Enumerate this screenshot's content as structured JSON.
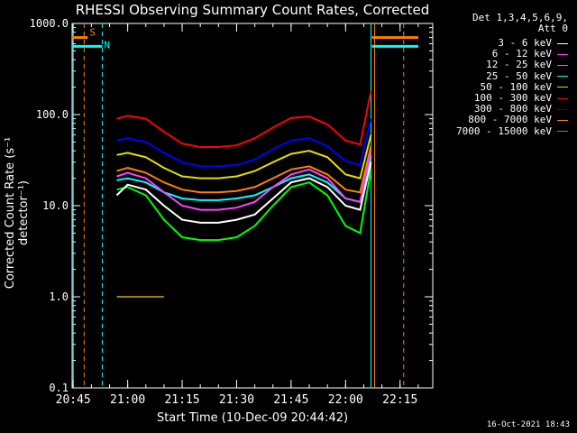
{
  "chart_data": {
    "type": "line",
    "title": "RHESSI Observing Summary Count Rates, Corrected",
    "xlabel": "Start Time (10-Dec-09 20:44:42)",
    "ylabel": "Corrected Count Rate (s⁻¹ detector⁻¹)",
    "yscale": "log",
    "ylim": [
      0.1,
      1000
    ],
    "xlim": [
      "20:44:42",
      "22:24:00"
    ],
    "x_ticks": [
      "20:45",
      "21:00",
      "21:15",
      "21:30",
      "21:45",
      "22:00",
      "22:15"
    ],
    "y_ticks": [
      "0.1",
      "1.0",
      "10.0",
      "100.0",
      "1000.0"
    ],
    "grid": false,
    "legend_position": "top-right",
    "detector_info": [
      "Det 1,3,4,5,6,9,",
      "Att 0"
    ],
    "data_gap": [
      "21:00",
      "22:07"
    ],
    "series": [
      {
        "name": "3 - 6 keV",
        "color": "#ffffff",
        "x": [
          "20:57",
          "21:00",
          "21:05",
          "21:10",
          "21:15",
          "21:20",
          "21:25",
          "21:30",
          "21:35",
          "21:40",
          "21:45",
          "21:50",
          "21:55",
          "22:00",
          "22:04",
          "22:07"
        ],
        "values": [
          13,
          17,
          15,
          10,
          7,
          6.5,
          6.5,
          7,
          8,
          12,
          18,
          20,
          16,
          10,
          9,
          30
        ]
      },
      {
        "name": "6 - 12 keV",
        "color": "#ff40ff",
        "x": [
          "20:57",
          "21:00",
          "21:05",
          "21:10",
          "21:15",
          "21:20",
          "21:25",
          "21:30",
          "21:35",
          "21:40",
          "21:45",
          "21:50",
          "21:55",
          "22:00",
          "22:04",
          "22:07"
        ],
        "values": [
          21,
          23,
          20,
          14,
          10,
          9,
          9,
          9.5,
          11,
          16,
          22,
          25,
          20,
          12,
          11,
          40
        ]
      },
      {
        "name": "12 - 25 keV",
        "color": "#00ff00",
        "x": [
          "20:57",
          "21:00",
          "21:05",
          "21:10",
          "21:15",
          "21:20",
          "21:25",
          "21:30",
          "21:35",
          "21:40",
          "21:45",
          "21:50",
          "21:55",
          "22:00",
          "22:04",
          "22:07"
        ],
        "values": [
          15,
          16,
          13,
          7,
          4.5,
          4.2,
          4.2,
          4.5,
          6,
          10,
          16,
          18,
          13,
          6,
          5,
          25
        ]
      },
      {
        "name": "25 - 50 keV",
        "color": "#00ffff",
        "x": [
          "20:57",
          "21:00",
          "21:05",
          "21:10",
          "21:15",
          "21:20",
          "21:25",
          "21:30",
          "21:35",
          "21:40",
          "21:45",
          "21:50",
          "21:55",
          "22:00",
          "22:04",
          "22:07"
        ],
        "values": [
          19,
          20,
          18,
          14,
          12,
          11.5,
          11.5,
          12,
          13,
          16,
          20,
          22,
          18,
          12,
          11,
          35
        ]
      },
      {
        "name": "50 - 100 keV",
        "color": "#e0e000",
        "x": [
          "20:57",
          "21:00",
          "21:05",
          "21:10",
          "21:15",
          "21:20",
          "21:25",
          "21:30",
          "21:35",
          "21:40",
          "21:45",
          "21:50",
          "21:55",
          "22:00",
          "22:04",
          "22:07"
        ],
        "values": [
          36,
          38,
          34,
          26,
          21,
          20,
          20,
          21,
          24,
          30,
          37,
          40,
          34,
          22,
          20,
          60
        ]
      },
      {
        "name": "100 - 300 keV",
        "color": "#ff0000",
        "x": [
          "20:57",
          "21:00",
          "21:05",
          "21:10",
          "21:15",
          "21:20",
          "21:25",
          "21:30",
          "21:35",
          "21:40",
          "21:45",
          "21:50",
          "21:55",
          "22:00",
          "22:04",
          "22:07"
        ],
        "values": [
          90,
          97,
          90,
          65,
          48,
          44,
          44,
          46,
          55,
          72,
          92,
          95,
          78,
          52,
          47,
          180
        ]
      },
      {
        "name": "300 - 800 keV",
        "color": "#0000ff",
        "x": [
          "20:57",
          "21:00",
          "21:05",
          "21:10",
          "21:15",
          "21:20",
          "21:25",
          "21:30",
          "21:35",
          "21:40",
          "21:45",
          "21:50",
          "21:55",
          "22:00",
          "22:04",
          "22:07"
        ],
        "values": [
          52,
          55,
          50,
          38,
          30,
          27,
          27,
          28,
          32,
          42,
          52,
          55,
          45,
          31,
          28,
          90
        ]
      },
      {
        "name": "800 - 7000 keV",
        "color": "#ff8000",
        "x": [
          "20:57",
          "21:00",
          "21:05",
          "21:10",
          "21:15",
          "21:20",
          "21:25",
          "21:30",
          "21:35",
          "21:40",
          "21:45",
          "21:50",
          "21:55",
          "22:00",
          "22:04",
          "22:07"
        ],
        "values": [
          24,
          26,
          23,
          18,
          15,
          14,
          14,
          14.5,
          16,
          20,
          25,
          27,
          22,
          15,
          14,
          45
        ]
      },
      {
        "name": "7000 - 15000 keV",
        "color": "#a08000",
        "x": [
          "20:57",
          "21:00",
          "21:05",
          "21:10"
        ],
        "values": [
          1.0,
          1.0,
          1.0,
          1.0
        ]
      }
    ],
    "flag_bars": [
      {
        "name": "S",
        "color": "#ff8000",
        "x_start": "20:44:42",
        "x_end": "20:49",
        "y": 700
      },
      {
        "name": "N",
        "color": "#00ffff",
        "x_start": "20:44:42",
        "x_end": "20:53",
        "y": 560
      }
    ],
    "vertical_lines": [
      {
        "x": "20:45",
        "color": "#00ffff",
        "style": "solid"
      },
      {
        "x": "20:48",
        "color": "#ff8000",
        "style": "dashed"
      },
      {
        "x": "20:53",
        "color": "#00ffff",
        "style": "dashed"
      },
      {
        "x": "22:07",
        "color": "#00ffff",
        "style": "solid"
      },
      {
        "x": "22:08",
        "color": "#ff8000",
        "style": "solid"
      },
      {
        "x": "22:16",
        "color": "#ff8000",
        "style": "dashed"
      }
    ]
  },
  "timestamp": "16-Oct-2021 18:43"
}
